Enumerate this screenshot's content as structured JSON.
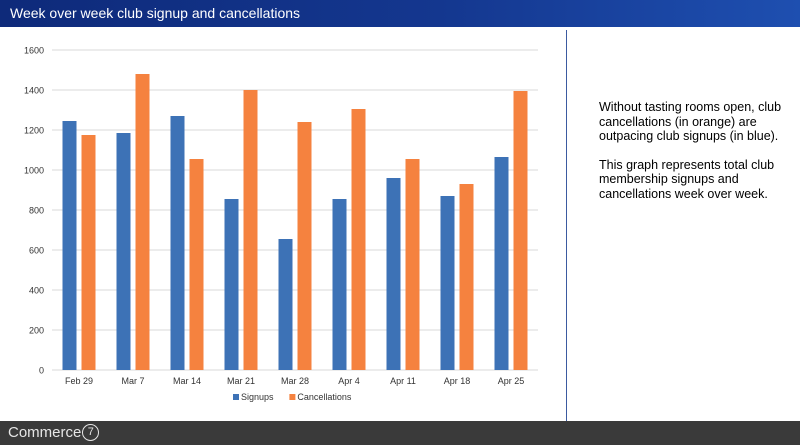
{
  "header": {
    "title": "Week over week club signup and cancellations"
  },
  "description": {
    "paragraphs": [
      "Without tasting rooms open, club cancellations (in orange) are outpacing club signups (in blue).",
      "This graph represents total club membership signups and cancellations week over week."
    ]
  },
  "footer": {
    "logo_text": "Commerce",
    "logo_badge": "7"
  },
  "chart_data": {
    "type": "bar",
    "title": "",
    "xlabel": "",
    "ylabel": "",
    "categories": [
      "Feb 29",
      "Mar 7",
      "Mar 14",
      "Mar 21",
      "Mar 28",
      "Apr 4",
      "Apr 11",
      "Apr 18",
      "Apr 25"
    ],
    "series": [
      {
        "name": "Signups",
        "color": "#3d72b6",
        "values": [
          1245,
          1185,
          1270,
          855,
          655,
          855,
          960,
          870,
          1065
        ]
      },
      {
        "name": "Cancellations",
        "color": "#f5823f",
        "values": [
          1175,
          1480,
          1055,
          1400,
          1240,
          1305,
          1055,
          930,
          1395
        ]
      }
    ],
    "ylim": [
      0,
      1600
    ],
    "yticks": [
      0,
      200,
      400,
      600,
      800,
      1000,
      1200,
      1400,
      1600
    ],
    "grid": true,
    "legend": "bottom"
  }
}
